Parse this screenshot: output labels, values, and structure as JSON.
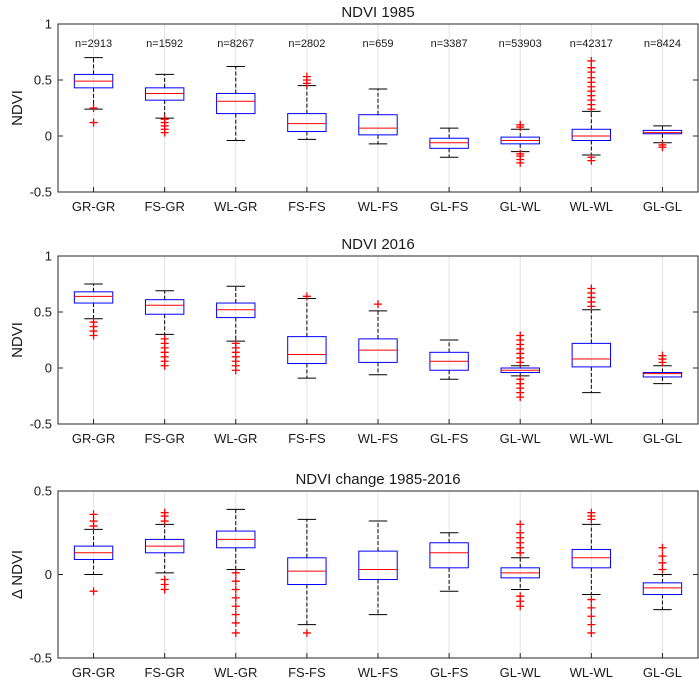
{
  "chart_data": [
    {
      "type": "boxplot",
      "title": "NDVI 1985",
      "ylabel": "NDVI",
      "xlabel": "",
      "ylim": [
        -0.5,
        1
      ],
      "yticks": [
        "-0.5",
        "0",
        "0.5",
        "1"
      ],
      "ytick_values": [
        -0.5,
        0,
        0.5,
        1
      ],
      "grid": "vertical",
      "categories": [
        "GR-GR",
        "FS-GR",
        "WL-GR",
        "FS-FS",
        "WL-FS",
        "GL-FS",
        "GL-WL",
        "WL-WL",
        "GL-GL"
      ],
      "sample_sizes": [
        "n=2913",
        "n=1592",
        "n=8267",
        "n=2802",
        "n=659",
        "n=3387",
        "n=53903",
        "n=42317",
        "n=8424"
      ],
      "boxes": [
        {
          "whisker_low": 0.24,
          "q1": 0.43,
          "median": 0.49,
          "q3": 0.55,
          "whisker_high": 0.7,
          "outliers": [
            0.12,
            0.25
          ]
        },
        {
          "whisker_low": 0.16,
          "q1": 0.32,
          "median": 0.38,
          "q3": 0.43,
          "whisker_high": 0.55,
          "outliers": [
            0.03,
            0.06,
            0.09,
            0.12,
            0.15
          ]
        },
        {
          "whisker_low": -0.04,
          "q1": 0.2,
          "median": 0.31,
          "q3": 0.38,
          "whisker_high": 0.62,
          "outliers": []
        },
        {
          "whisker_low": -0.03,
          "q1": 0.04,
          "median": 0.11,
          "q3": 0.2,
          "whisker_high": 0.45,
          "outliers": [
            0.47,
            0.5,
            0.53
          ]
        },
        {
          "whisker_low": -0.07,
          "q1": 0.01,
          "median": 0.07,
          "q3": 0.19,
          "whisker_high": 0.42,
          "outliers": []
        },
        {
          "whisker_low": -0.19,
          "q1": -0.11,
          "median": -0.06,
          "q3": -0.02,
          "whisker_high": 0.07,
          "outliers": []
        },
        {
          "whisker_low": -0.14,
          "q1": -0.07,
          "median": -0.04,
          "q3": -0.01,
          "whisker_high": 0.06,
          "outliers": [
            -0.24,
            -0.21,
            -0.18,
            -0.16,
            0.08,
            0.1
          ]
        },
        {
          "whisker_low": -0.17,
          "q1": -0.04,
          "median": 0.0,
          "q3": 0.06,
          "whisker_high": 0.22,
          "outliers": [
            -0.22,
            -0.19,
            0.24,
            0.28,
            0.32,
            0.36,
            0.4,
            0.44,
            0.48,
            0.52,
            0.57,
            0.61,
            0.67
          ]
        },
        {
          "whisker_low": -0.06,
          "q1": 0.02,
          "median": 0.03,
          "q3": 0.05,
          "whisker_high": 0.09,
          "outliers": [
            -0.1,
            -0.08
          ]
        }
      ]
    },
    {
      "type": "boxplot",
      "title": "NDVI 2016",
      "ylabel": "NDVI",
      "xlabel": "",
      "ylim": [
        -0.5,
        1
      ],
      "yticks": [
        "-0.5",
        "0",
        "0.5",
        "1"
      ],
      "ytick_values": [
        -0.5,
        0,
        0.5,
        1
      ],
      "grid": "vertical",
      "categories": [
        "GR-GR",
        "FS-GR",
        "WL-GR",
        "FS-FS",
        "WL-FS",
        "GL-FS",
        "GL-WL",
        "WL-WL",
        "GL-GL"
      ],
      "boxes": [
        {
          "whisker_low": 0.44,
          "q1": 0.58,
          "median": 0.64,
          "q3": 0.68,
          "whisker_high": 0.75,
          "outliers": [
            0.29,
            0.33,
            0.37,
            0.41
          ]
        },
        {
          "whisker_low": 0.3,
          "q1": 0.48,
          "median": 0.56,
          "q3": 0.61,
          "whisker_high": 0.69,
          "outliers": [
            0.02,
            0.06,
            0.1,
            0.14,
            0.18,
            0.22,
            0.26
          ]
        },
        {
          "whisker_low": 0.24,
          "q1": 0.45,
          "median": 0.52,
          "q3": 0.58,
          "whisker_high": 0.73,
          "outliers": [
            -0.02,
            0.02,
            0.06,
            0.1,
            0.14,
            0.18,
            0.22
          ]
        },
        {
          "whisker_low": -0.09,
          "q1": 0.04,
          "median": 0.12,
          "q3": 0.28,
          "whisker_high": 0.62,
          "outliers": [
            0.64
          ]
        },
        {
          "whisker_low": -0.06,
          "q1": 0.05,
          "median": 0.16,
          "q3": 0.26,
          "whisker_high": 0.51,
          "outliers": [
            0.57
          ]
        },
        {
          "whisker_low": -0.1,
          "q1": -0.02,
          "median": 0.06,
          "q3": 0.14,
          "whisker_high": 0.25,
          "outliers": []
        },
        {
          "whisker_low": -0.07,
          "q1": -0.04,
          "median": -0.02,
          "q3": 0.0,
          "whisker_high": 0.02,
          "outliers": [
            -0.26,
            -0.22,
            -0.18,
            -0.14,
            -0.1,
            0.05,
            0.09,
            0.13,
            0.17,
            0.21,
            0.25,
            0.29
          ]
        },
        {
          "whisker_low": -0.22,
          "q1": 0.01,
          "median": 0.08,
          "q3": 0.22,
          "whisker_high": 0.52,
          "outliers": [
            0.55,
            0.59,
            0.63,
            0.67,
            0.71
          ]
        },
        {
          "whisker_low": -0.14,
          "q1": -0.08,
          "median": -0.05,
          "q3": -0.04,
          "whisker_high": 0.02,
          "outliers": [
            0.05,
            0.08,
            0.11
          ]
        }
      ]
    },
    {
      "type": "boxplot",
      "title": "NDVI change 1985-2016",
      "ylabel": "Δ NDVI",
      "xlabel": "",
      "ylim": [
        -0.5,
        0.5
      ],
      "yticks": [
        "-0.5",
        "0",
        "0.5"
      ],
      "ytick_values": [
        -0.5,
        0,
        0.5
      ],
      "grid": "vertical",
      "categories": [
        "GR-GR",
        "FS-GR",
        "WL-GR",
        "FS-FS",
        "WL-FS",
        "GL-FS",
        "GL-WL",
        "WL-WL",
        "GL-GL"
      ],
      "boxes": [
        {
          "whisker_low": 0.0,
          "q1": 0.09,
          "median": 0.13,
          "q3": 0.17,
          "whisker_high": 0.27,
          "outliers": [
            -0.1,
            0.29,
            0.32,
            0.36
          ]
        },
        {
          "whisker_low": 0.01,
          "q1": 0.13,
          "median": 0.17,
          "q3": 0.21,
          "whisker_high": 0.3,
          "outliers": [
            -0.09,
            -0.06,
            -0.03,
            0.32,
            0.35,
            0.37
          ]
        },
        {
          "whisker_low": 0.03,
          "q1": 0.16,
          "median": 0.21,
          "q3": 0.26,
          "whisker_high": 0.39,
          "outliers": [
            -0.35,
            -0.29,
            -0.24,
            -0.19,
            -0.14,
            -0.09,
            -0.04,
            0.01
          ]
        },
        {
          "whisker_low": -0.3,
          "q1": -0.06,
          "median": 0.02,
          "q3": 0.1,
          "whisker_high": 0.33,
          "outliers": [
            -0.35
          ]
        },
        {
          "whisker_low": -0.24,
          "q1": -0.03,
          "median": 0.03,
          "q3": 0.14,
          "whisker_high": 0.32,
          "outliers": []
        },
        {
          "whisker_low": -0.1,
          "q1": 0.04,
          "median": 0.13,
          "q3": 0.19,
          "whisker_high": 0.25,
          "outliers": []
        },
        {
          "whisker_low": -0.09,
          "q1": -0.02,
          "median": 0.01,
          "q3": 0.04,
          "whisker_high": 0.1,
          "outliers": [
            -0.19,
            -0.16,
            -0.13,
            0.13,
            0.16,
            0.19,
            0.22,
            0.25,
            0.3
          ]
        },
        {
          "whisker_low": -0.12,
          "q1": 0.04,
          "median": 0.1,
          "q3": 0.15,
          "whisker_high": 0.3,
          "outliers": [
            -0.35,
            -0.3,
            -0.25,
            -0.2,
            -0.15,
            0.33,
            0.35,
            0.37
          ]
        },
        {
          "whisker_low": -0.21,
          "q1": -0.12,
          "median": -0.08,
          "q3": -0.05,
          "whisker_high": 0.0,
          "outliers": [
            0.03,
            0.07,
            0.11,
            0.16
          ]
        }
      ]
    }
  ],
  "colors": {
    "box": "#0000ff",
    "median": "#ff0000",
    "whisker": "#000000",
    "outlier": "#ff0000",
    "grid": "#e3e3e3",
    "axis": "#262626"
  }
}
